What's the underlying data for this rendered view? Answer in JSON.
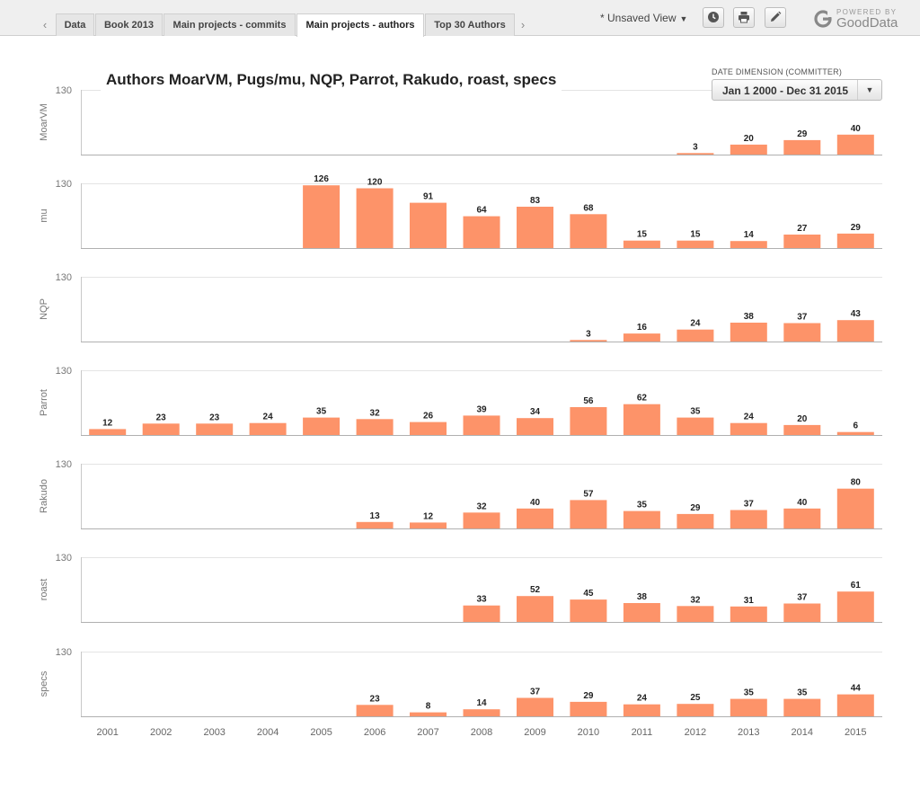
{
  "tabs": {
    "prev_arrow": "‹",
    "next_arrow": "›",
    "items": [
      {
        "label": "Data"
      },
      {
        "label": "Book 2013"
      },
      {
        "label": "Main projects - commits"
      },
      {
        "label": "Main projects - authors",
        "active": true
      },
      {
        "label": "Top 30 Authors"
      }
    ]
  },
  "toolbar": {
    "view_label": "* Unsaved View",
    "view_caret": "▼",
    "buttons": [
      {
        "icon": "clock-icon"
      },
      {
        "icon": "print-icon"
      },
      {
        "icon": "pencil-icon"
      }
    ]
  },
  "brand": {
    "powered_by": "POWERED BY",
    "name": "GoodData"
  },
  "report": {
    "title": "Authors MoarVM, Pugs/mu, NQP, Parrot, Rakudo, roast, specs"
  },
  "date_filter": {
    "label": "DATE DIMENSION (COMMITTER)",
    "value": "Jan 1 2000 - Dec 31 2015",
    "caret": "▼"
  },
  "chart_data": {
    "type": "bar",
    "title": "Authors MoarVM, Pugs/mu, NQP, Parrot, Rakudo, roast, specs",
    "categories": [
      "2001",
      "2002",
      "2003",
      "2004",
      "2005",
      "2006",
      "2007",
      "2008",
      "2009",
      "2010",
      "2011",
      "2012",
      "2013",
      "2014",
      "2015"
    ],
    "y_tick": 130,
    "ylim": [
      0,
      130
    ],
    "bar_color": "#fd9369",
    "series": [
      {
        "name": "MoarVM",
        "values": [
          null,
          null,
          null,
          null,
          null,
          null,
          null,
          null,
          null,
          null,
          null,
          3,
          20,
          29,
          40
        ]
      },
      {
        "name": "mu",
        "values": [
          null,
          null,
          null,
          null,
          126,
          120,
          91,
          64,
          83,
          68,
          15,
          15,
          14,
          27,
          29
        ]
      },
      {
        "name": "NQP",
        "values": [
          null,
          null,
          null,
          null,
          null,
          null,
          null,
          null,
          null,
          3,
          16,
          24,
          38,
          37,
          43
        ]
      },
      {
        "name": "Parrot",
        "values": [
          12,
          23,
          23,
          24,
          35,
          32,
          26,
          39,
          34,
          56,
          62,
          35,
          24,
          20,
          6
        ]
      },
      {
        "name": "Rakudo",
        "values": [
          null,
          null,
          null,
          null,
          null,
          13,
          12,
          32,
          40,
          57,
          35,
          29,
          37,
          40,
          80
        ]
      },
      {
        "name": "roast",
        "values": [
          null,
          null,
          null,
          null,
          null,
          null,
          null,
          33,
          52,
          45,
          38,
          32,
          31,
          37,
          61
        ]
      },
      {
        "name": "specs",
        "values": [
          null,
          null,
          null,
          null,
          null,
          23,
          8,
          14,
          37,
          29,
          24,
          25,
          35,
          35,
          44
        ]
      }
    ]
  }
}
